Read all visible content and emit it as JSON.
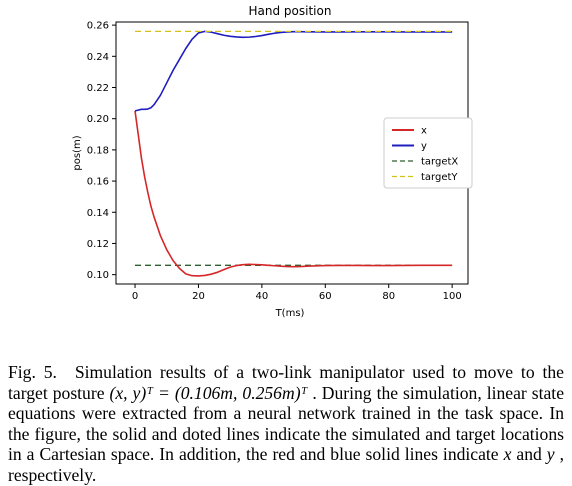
{
  "chart_data": {
    "type": "line",
    "title": "Hand position",
    "xlabel": "T(ms)",
    "ylabel": "pos(m)",
    "xlim": [
      -6,
      105
    ],
    "ylim": [
      0.094,
      0.262
    ],
    "xticks": [
      0,
      20,
      40,
      60,
      80,
      100
    ],
    "yticks": [
      0.1,
      0.12,
      0.14,
      0.16,
      0.18,
      0.2,
      0.22,
      0.24,
      0.26
    ],
    "legend_position": "right",
    "grid": false,
    "series": [
      {
        "name": "x",
        "style": "solid",
        "color": "#d62728",
        "x": [
          0,
          1,
          2,
          3,
          4,
          5,
          6,
          8,
          10,
          12,
          14,
          16,
          18,
          20,
          22,
          24,
          26,
          28,
          30,
          32,
          34,
          36,
          38,
          40,
          42,
          44,
          46,
          48,
          50,
          52,
          55,
          60,
          65,
          70,
          75,
          80,
          85,
          90,
          95,
          100
        ],
        "y": [
          0.205,
          0.19,
          0.175,
          0.163,
          0.153,
          0.144,
          0.137,
          0.125,
          0.116,
          0.109,
          0.104,
          0.1005,
          0.0993,
          0.0992,
          0.0995,
          0.1003,
          0.1015,
          0.1032,
          0.1048,
          0.1058,
          0.1064,
          0.1066,
          0.1065,
          0.1063,
          0.106,
          0.1057,
          0.1054,
          0.1052,
          0.1051,
          0.1052,
          0.1055,
          0.1058,
          0.1059,
          0.1059,
          0.1058,
          0.1058,
          0.1059,
          0.106,
          0.106,
          0.106
        ]
      },
      {
        "name": "y",
        "style": "solid",
        "color": "#1f1fbf",
        "x": [
          0,
          1,
          2,
          3,
          4,
          5,
          6,
          7,
          8,
          9,
          10,
          12,
          14,
          16,
          18,
          20,
          22,
          24,
          26,
          28,
          30,
          32,
          34,
          36,
          38,
          40,
          42,
          44,
          46,
          48,
          50,
          52,
          55,
          60,
          65,
          70,
          75,
          80,
          85,
          90,
          95,
          100
        ],
        "y": [
          0.205,
          0.2055,
          0.206,
          0.206,
          0.2062,
          0.207,
          0.209,
          0.212,
          0.215,
          0.219,
          0.223,
          0.231,
          0.238,
          0.245,
          0.251,
          0.255,
          0.256,
          0.2555,
          0.2545,
          0.2535,
          0.2528,
          0.2524,
          0.2522,
          0.2523,
          0.2527,
          0.2533,
          0.2541,
          0.2548,
          0.2553,
          0.2556,
          0.2558,
          0.2558,
          0.2557,
          0.2556,
          0.2556,
          0.2557,
          0.2557,
          0.2557,
          0.2556,
          0.2556,
          0.2556,
          0.2556
        ]
      },
      {
        "name": "targetX",
        "style": "dashed",
        "color": "#2e5d2e",
        "x": [
          0,
          100
        ],
        "y": [
          0.106,
          0.106
        ]
      },
      {
        "name": "targetY",
        "style": "dashed",
        "color": "#d4c21a",
        "x": [
          0,
          100
        ],
        "y": [
          0.256,
          0.256
        ]
      }
    ]
  },
  "caption": {
    "label": "Fig. 5.",
    "text_1": "Simulation results of a two-link manipulator used to move to the target posture ",
    "math": "(x, y)ᵀ = (0.106m, 0.256m)ᵀ",
    "text_2": ". During the simulation, linear state equations were extracted from a neural network trained in the task space. In the figure, the solid and doted lines indicate the simulated and target locations in a Cartesian space. In addition, the red and blue solid lines indicate ",
    "var_x": "x",
    "text_3": " and ",
    "var_y": "y",
    "text_4": ", respectively."
  }
}
